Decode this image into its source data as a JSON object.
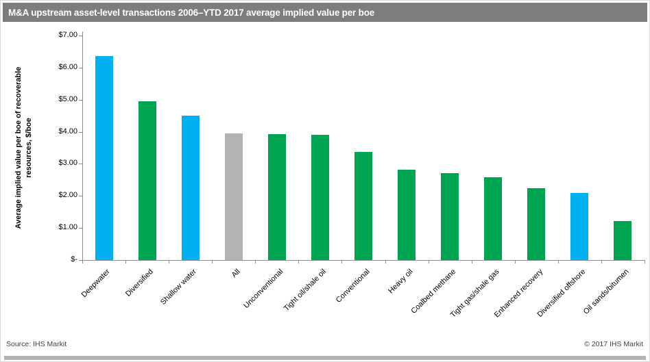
{
  "header": {
    "title": "M&A upstream asset-level transactions 2006–YTD 2017 average implied value per boe"
  },
  "footer": {
    "source": "Source:  IHS Markit",
    "copyright": "© 2017  IHS Markit"
  },
  "colors": {
    "header_bg": "#7d7d7d",
    "bar_blue": "#00b0f0",
    "bar_green": "#00a551",
    "bar_gray": "#b1b3b5",
    "axis": "#8c8c8c",
    "bottom_bar": "#b3b3b3",
    "border": "#d9d9d9",
    "footer_text": "#3f3f3f"
  },
  "chart_data": {
    "type": "bar",
    "title": "M&A upstream asset-level transactions 2006–YTD 2017 average implied value per boe",
    "ylabel": "Average implied value per boe of recoverable resources, $/boe",
    "ylabel_lines": [
      "Average  implied value per boe of recoverable",
      "resources, $/boe"
    ],
    "xlabel": "",
    "ylim": [
      0,
      7
    ],
    "grid": false,
    "legend_position": "none",
    "yticks": [
      7,
      6,
      5,
      4,
      3,
      2,
      1,
      0
    ],
    "ytick_labels": [
      "$7.00",
      "$6.00",
      "$5.00",
      "$4.00",
      "$3.00",
      "$2.00",
      "$1.00",
      "$-"
    ],
    "categories": [
      "Deepwater",
      "Diversified",
      "Shallow water",
      "All",
      "Unconventional",
      "Tight oil/shale oil",
      "Conventional",
      "Heavy oil",
      "Coalbed methane",
      "Tight gas/shale gas",
      "Enhanced recovery",
      "Diversified offshore",
      "Oil sands/bitumen"
    ],
    "values": [
      6.35,
      4.95,
      4.5,
      3.95,
      3.93,
      3.9,
      3.38,
      2.82,
      2.7,
      2.58,
      2.25,
      2.1,
      1.21
    ],
    "bar_color_keys": [
      "bar_blue",
      "bar_green",
      "bar_blue",
      "bar_gray",
      "bar_green",
      "bar_green",
      "bar_green",
      "bar_green",
      "bar_green",
      "bar_green",
      "bar_green",
      "bar_blue",
      "bar_green"
    ]
  }
}
